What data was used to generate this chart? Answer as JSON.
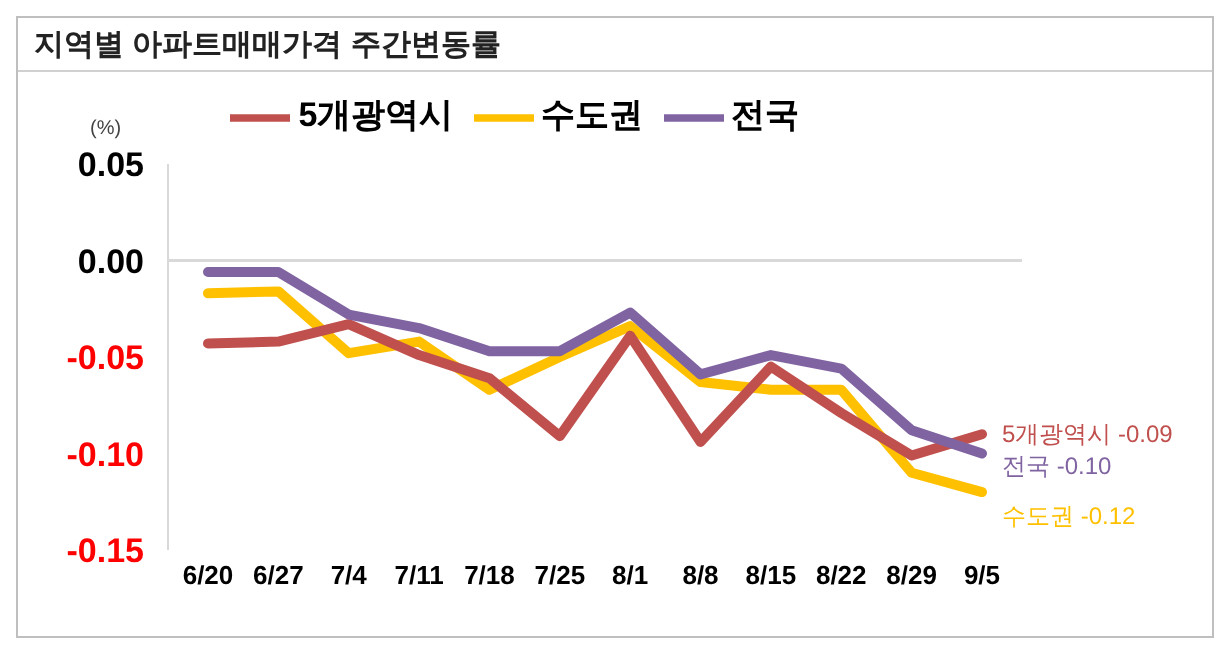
{
  "chart_data": {
    "type": "line",
    "title": "지역별 아파트매매가격 주간변동률",
    "ylabel": "(%)",
    "categories": [
      "6/20",
      "6/27",
      "7/4",
      "7/11",
      "7/18",
      "7/25",
      "8/1",
      "8/8",
      "8/15",
      "8/22",
      "8/29",
      "9/5"
    ],
    "series": [
      {
        "name": "수도권",
        "color": "#ffc000",
        "values": [
          -0.017,
          -0.016,
          -0.048,
          -0.042,
          -0.067,
          -0.05,
          -0.034,
          -0.063,
          -0.067,
          -0.067,
          -0.11,
          -0.12
        ]
      },
      {
        "name": "5개광역시",
        "color": "#c0504d",
        "values": [
          -0.043,
          -0.042,
          -0.033,
          -0.049,
          -0.061,
          -0.091,
          -0.039,
          -0.094,
          -0.055,
          -0.079,
          -0.101,
          -0.09
        ]
      },
      {
        "name": "전국",
        "color": "#8064a2",
        "values": [
          -0.006,
          -0.006,
          -0.028,
          -0.035,
          -0.047,
          -0.047,
          -0.027,
          -0.059,
          -0.049,
          -0.056,
          -0.088,
          -0.1
        ]
      }
    ],
    "ylim": [
      -0.15,
      0.05
    ],
    "yticks": [
      {
        "value": 0.05,
        "label": "0.05"
      },
      {
        "value": 0,
        "label": "0.00"
      },
      {
        "value": -0.05,
        "label": "-0.05"
      },
      {
        "value": -0.1,
        "label": "-0.10"
      },
      {
        "value": -0.15,
        "label": "-0.15"
      }
    ],
    "ref_lines": [
      {
        "axis": "y",
        "value": 0,
        "color": "#d9d9d9"
      }
    ],
    "annotations": [
      {
        "text": "수도권 -0.12",
        "x": "9/5",
        "y": -0.12
      },
      {
        "text": "5개광역시 -0.09",
        "x": "9/5",
        "y": -0.09
      },
      {
        "text": "전국 -0.10",
        "x": "9/5",
        "y": -0.1
      }
    ],
    "legend": "top",
    "grid": false,
    "marker": "none",
    "line_style": "solid"
  }
}
